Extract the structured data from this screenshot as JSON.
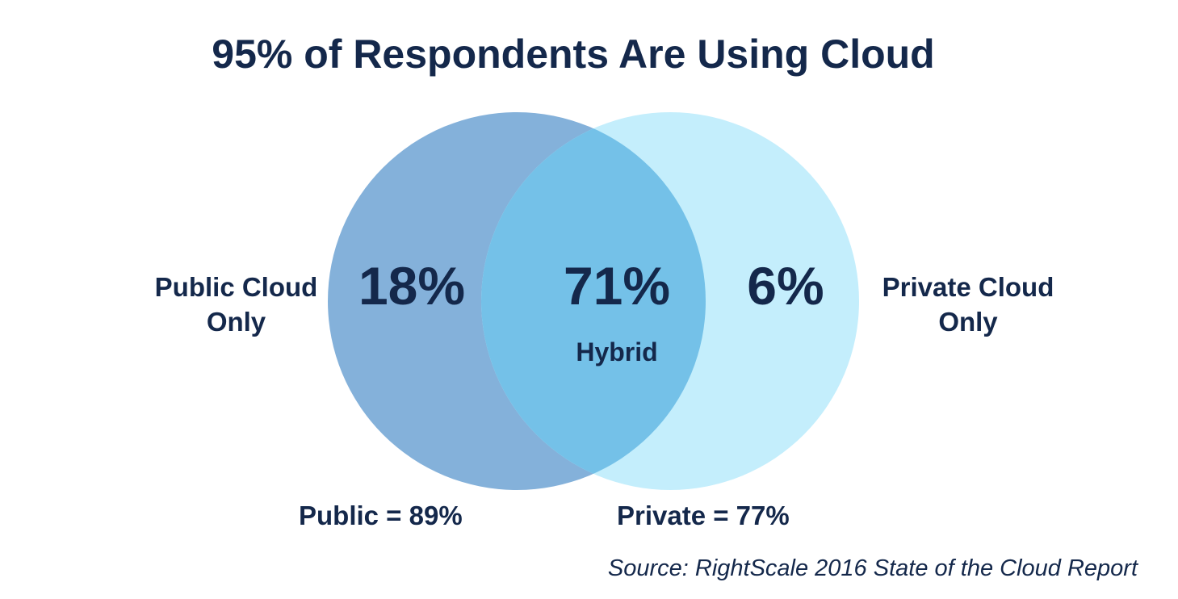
{
  "title": "95% of Respondents Are Using Cloud",
  "colors": {
    "public_circle": "#84b1da",
    "private_circle": "#c4eefc",
    "overlap": "#74c1e8",
    "text": "#14284b"
  },
  "public_only": {
    "label_line1": "Public Cloud",
    "label_line2": "Only",
    "percent": "18%"
  },
  "hybrid": {
    "percent": "71%",
    "label": "Hybrid"
  },
  "private_only": {
    "label_line1": "Private Cloud",
    "label_line2": "Only",
    "percent": "6%"
  },
  "totals": {
    "public": "Public = 89%",
    "private": "Private = 77%"
  },
  "source": "Source: RightScale 2016 State of the Cloud Report"
}
